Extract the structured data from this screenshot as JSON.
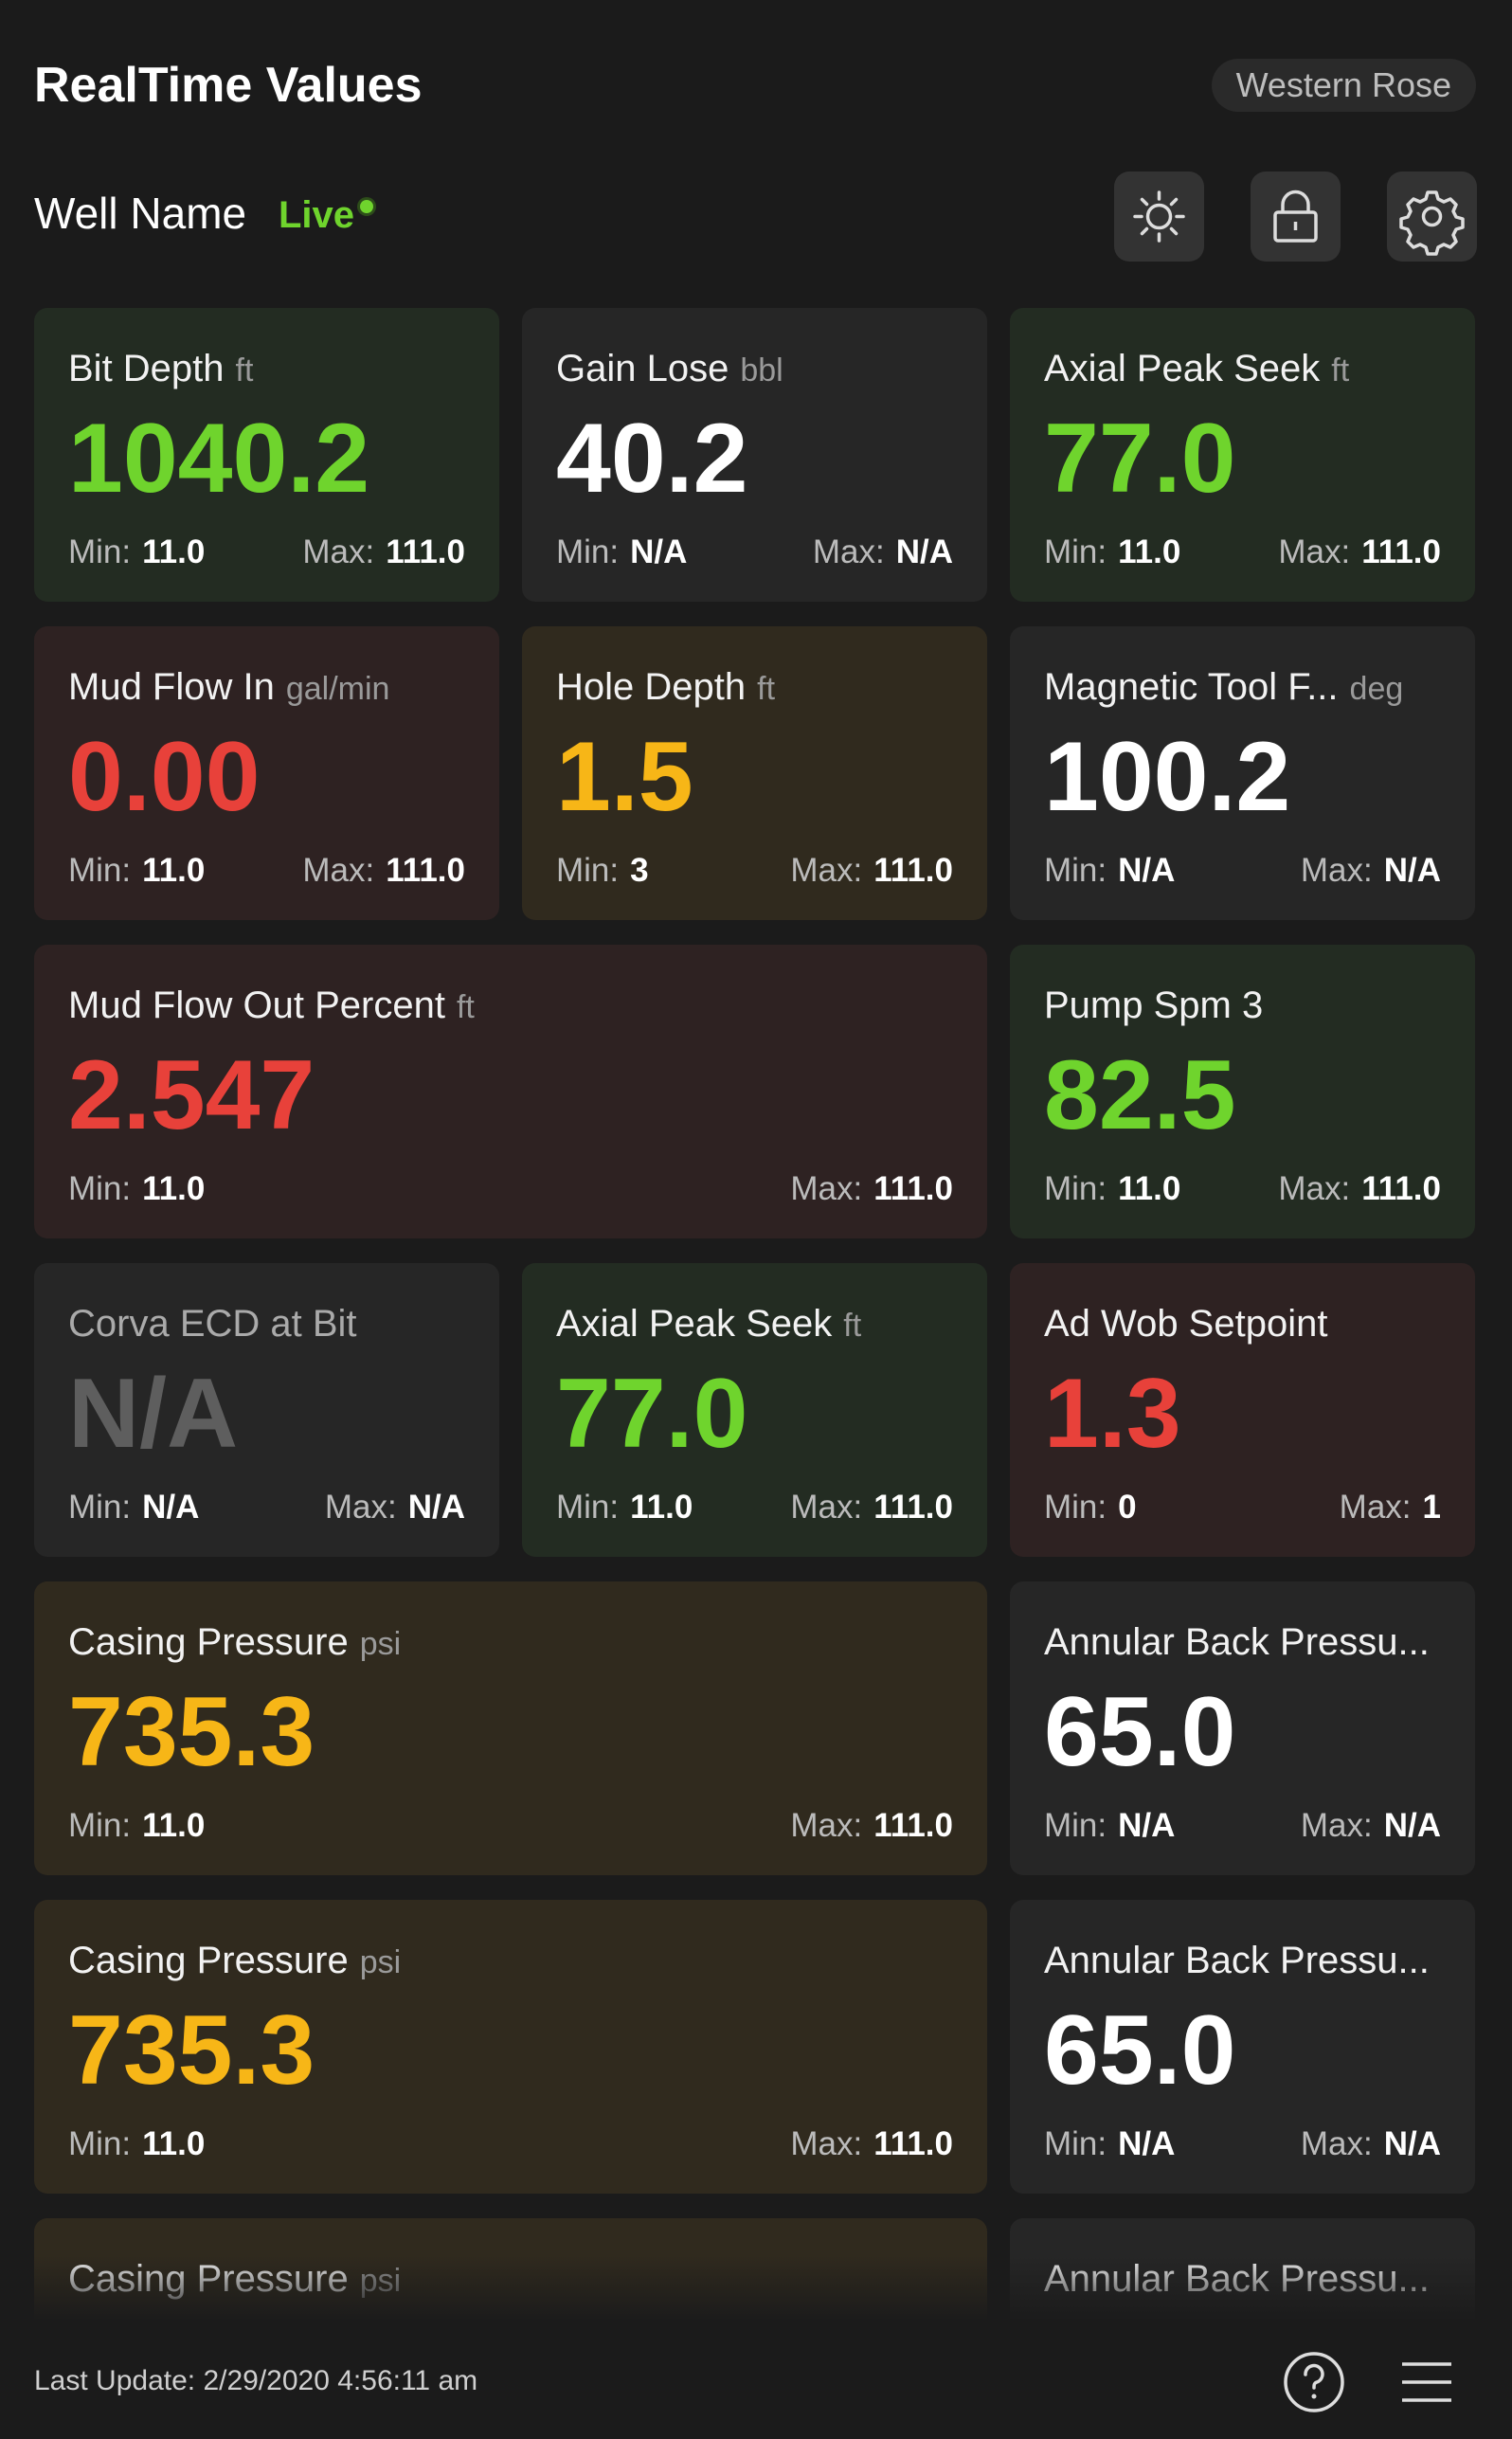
{
  "header": {
    "title": "RealTime Values",
    "site": "Western Rose"
  },
  "well": {
    "name": "Well Name",
    "status": "Live"
  },
  "labels": {
    "min": "Min:",
    "max": "Max:"
  },
  "cards": [
    {
      "label": "Bit Depth",
      "unit": "ft",
      "value": "1040.2",
      "min": "11.0",
      "max": "111.0",
      "status": "good"
    },
    {
      "label": "Gain Lose",
      "unit": "bbl",
      "value": "40.2",
      "min": "N/A",
      "max": "N/A",
      "status": "neutral"
    },
    {
      "label": "Axial Peak Seek",
      "unit": "ft",
      "value": "77.0",
      "min": "11.0",
      "max": "111.0",
      "status": "good"
    },
    {
      "label": "Mud Flow In",
      "unit": "gal/min",
      "value": "0.00",
      "min": "11.0",
      "max": "111.0",
      "status": "alarm"
    },
    {
      "label": "Hole Depth",
      "unit": "ft",
      "value": "1.5",
      "min": "3",
      "max": "111.0",
      "status": "warn"
    },
    {
      "label": "Magnetic Tool F...",
      "unit": "deg",
      "value": "100.2",
      "min": "N/A",
      "max": "N/A",
      "status": "neutral"
    },
    {
      "label": "Mud Flow Out Percent",
      "unit": "ft",
      "value": "2.547",
      "min": "11.0",
      "max": "111.0",
      "status": "alarm",
      "size": "wide"
    },
    {
      "label": "Pump Spm 3",
      "value": "82.5",
      "min": "11.0",
      "max": "111.0",
      "status": "good"
    },
    {
      "label": "Corva ECD at Bit",
      "value": "N/A",
      "min": "N/A",
      "max": "N/A",
      "status": "missing"
    },
    {
      "label": "Axial Peak Seek",
      "unit": "ft",
      "value": "77.0",
      "min": "11.0",
      "max": "111.0",
      "status": "good"
    },
    {
      "label": "Ad Wob Setpoint",
      "value": "1.3",
      "min": "0",
      "max": "1",
      "status": "alarm"
    },
    {
      "label": "Casing Pressure",
      "unit": "psi",
      "value": "735.3",
      "min": "11.0",
      "max": "111.0",
      "status": "warn",
      "size": "wide"
    },
    {
      "label": "Annular Back Pressu...",
      "value": "65.0",
      "min": "N/A",
      "max": "N/A",
      "status": "neutral"
    },
    {
      "label": "Casing Pressure",
      "unit": "psi",
      "value": "735.3",
      "min": "11.0",
      "max": "111.0",
      "status": "warn",
      "size": "wide"
    },
    {
      "label": "Annular Back Pressu...",
      "value": "65.0",
      "min": "N/A",
      "max": "N/A",
      "status": "neutral"
    },
    {
      "label": "Casing Pressure",
      "unit": "psi",
      "status": "warn",
      "size": "wide"
    },
    {
      "label": "Annular Back Pressu...",
      "status": "neutral"
    }
  ],
  "footer": {
    "last_update": "Last Update: 2/29/2020 4:56:11 am"
  }
}
